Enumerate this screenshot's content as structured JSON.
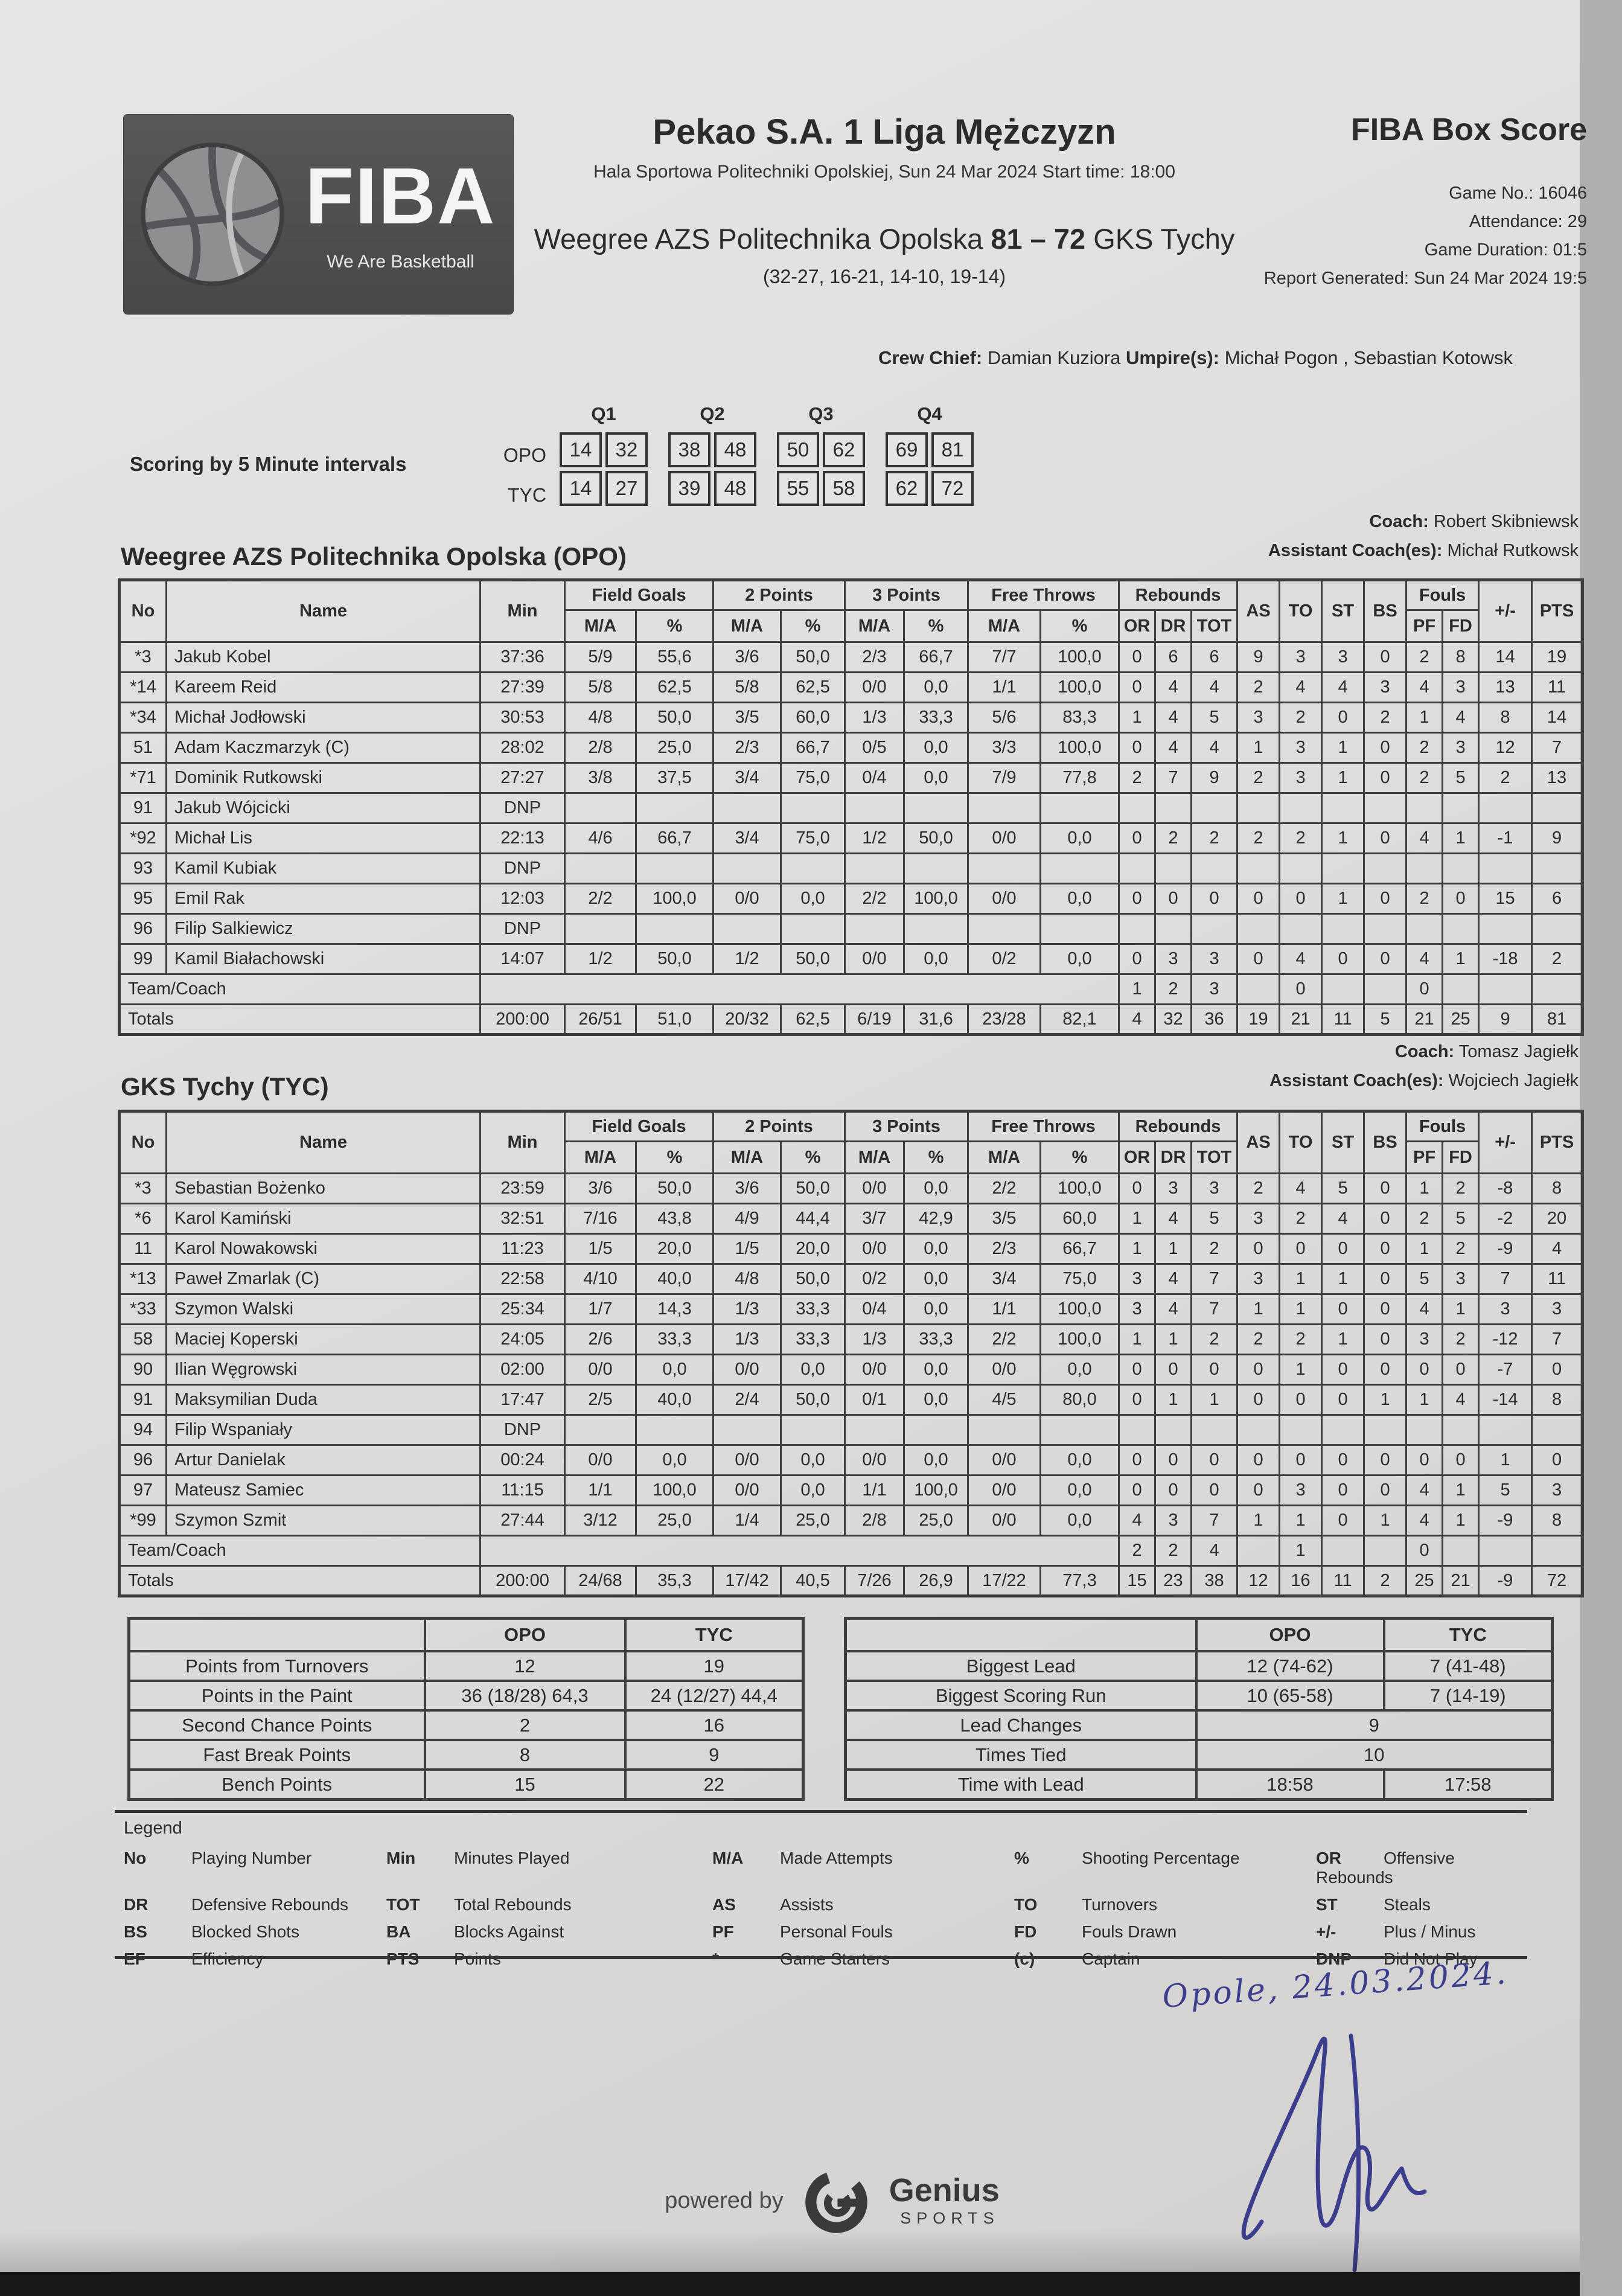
{
  "header": {
    "report_title": "FIBA Box Score",
    "league_title": "Pekao S.A. 1 Liga Mężczyzn",
    "venue_line": "Hala Sportowa Politechniki Opolskiej, Sun 24 Mar 2024 Start time: 18:00",
    "home_team": "Weegree AZS Politechnika Opolska",
    "score": "81 – 72",
    "away_team": "GKS Tychy",
    "quarter_scores": "(32-27, 16-21, 14-10, 19-14)",
    "info": {
      "game_no_label": "Game No.:",
      "game_no": "16046",
      "attendance_label": "Attendance:",
      "attendance": "29",
      "duration_label": "Game Duration:",
      "duration": "01:5",
      "generated_label": "Report Generated:",
      "generated": "Sun 24 Mar 2024 19:5"
    },
    "crew": {
      "chief_label": "Crew Chief:",
      "chief": "Damian Kuziora",
      "umpires_label": "Umpire(s):",
      "umpires": "Michał Pogon , Sebastian Kotowsk"
    },
    "logo": {
      "brand": "FIBA",
      "tagline": "We Are Basketball"
    }
  },
  "intervals": {
    "label": "Scoring by 5 Minute intervals",
    "quarters": [
      "Q1",
      "Q2",
      "Q3",
      "Q4"
    ],
    "rows": [
      {
        "team": "OPO",
        "values": [
          [
            "14",
            "32"
          ],
          [
            "38",
            "48"
          ],
          [
            "50",
            "62"
          ],
          [
            "69",
            "81"
          ]
        ]
      },
      {
        "team": "TYC",
        "values": [
          [
            "14",
            "27"
          ],
          [
            "39",
            "48"
          ],
          [
            "55",
            "58"
          ],
          [
            "62",
            "72"
          ]
        ]
      }
    ]
  },
  "cols": {
    "no": "No",
    "name": "Name",
    "min": "Min",
    "fg": "Field Goals",
    "p2": "2 Points",
    "p3": "3 Points",
    "ft": "Free Throws",
    "reb": "Rebounds",
    "ma": "M/A",
    "pct": "%",
    "or": "OR",
    "dr": "DR",
    "tot": "TOT",
    "as": "AS",
    "to": "TO",
    "st": "ST",
    "bs": "BS",
    "fouls": "Fouls",
    "pf": "PF",
    "fd": "FD",
    "pm": "+/-",
    "pts": "PTS"
  },
  "opo": {
    "title": "Weegree AZS Politechnika Opolska (OPO)",
    "coach_label": "Coach:",
    "coach": "Robert Skibniewsk",
    "assistant_label": "Assistant Coach(es):",
    "assistant": "Michał Rutkowsk",
    "players": [
      [
        "*3",
        "Jakub Kobel",
        "37:36",
        "5/9",
        "55,6",
        "3/6",
        "50,0",
        "2/3",
        "66,7",
        "7/7",
        "100,0",
        "0",
        "6",
        "6",
        "9",
        "3",
        "3",
        "0",
        "2",
        "8",
        "14",
        "19"
      ],
      [
        "*14",
        "Kareem Reid",
        "27:39",
        "5/8",
        "62,5",
        "5/8",
        "62,5",
        "0/0",
        "0,0",
        "1/1",
        "100,0",
        "0",
        "4",
        "4",
        "2",
        "4",
        "4",
        "3",
        "4",
        "3",
        "13",
        "11"
      ],
      [
        "*34",
        "Michał Jodłowski",
        "30:53",
        "4/8",
        "50,0",
        "3/5",
        "60,0",
        "1/3",
        "33,3",
        "5/6",
        "83,3",
        "1",
        "4",
        "5",
        "3",
        "2",
        "0",
        "2",
        "1",
        "4",
        "8",
        "14"
      ],
      [
        "51",
        "Adam Kaczmarzyk (C)",
        "28:02",
        "2/8",
        "25,0",
        "2/3",
        "66,7",
        "0/5",
        "0,0",
        "3/3",
        "100,0",
        "0",
        "4",
        "4",
        "1",
        "3",
        "1",
        "0",
        "2",
        "3",
        "12",
        "7"
      ],
      [
        "*71",
        "Dominik Rutkowski",
        "27:27",
        "3/8",
        "37,5",
        "3/4",
        "75,0",
        "0/4",
        "0,0",
        "7/9",
        "77,8",
        "2",
        "7",
        "9",
        "2",
        "3",
        "1",
        "0",
        "2",
        "5",
        "2",
        "13"
      ],
      [
        "91",
        "Jakub Wójcicki",
        "DNP",
        "",
        "",
        "",
        "",
        "",
        "",
        "",
        "",
        "",
        "",
        "",
        "",
        "",
        "",
        "",
        "",
        "",
        "",
        ""
      ],
      [
        "*92",
        "Michał Lis",
        "22:13",
        "4/6",
        "66,7",
        "3/4",
        "75,0",
        "1/2",
        "50,0",
        "0/0",
        "0,0",
        "0",
        "2",
        "2",
        "2",
        "2",
        "1",
        "0",
        "4",
        "1",
        "-1",
        "9"
      ],
      [
        "93",
        "Kamil Kubiak",
        "DNP",
        "",
        "",
        "",
        "",
        "",
        "",
        "",
        "",
        "",
        "",
        "",
        "",
        "",
        "",
        "",
        "",
        "",
        "",
        ""
      ],
      [
        "95",
        "Emil Rak",
        "12:03",
        "2/2",
        "100,0",
        "0/0",
        "0,0",
        "2/2",
        "100,0",
        "0/0",
        "0,0",
        "0",
        "0",
        "0",
        "0",
        "0",
        "1",
        "0",
        "2",
        "0",
        "15",
        "6"
      ],
      [
        "96",
        "Filip Salkiewicz",
        "DNP",
        "",
        "",
        "",
        "",
        "",
        "",
        "",
        "",
        "",
        "",
        "",
        "",
        "",
        "",
        "",
        "",
        "",
        "",
        ""
      ],
      [
        "99",
        "Kamil Białachowski",
        "14:07",
        "1/2",
        "50,0",
        "1/2",
        "50,0",
        "0/0",
        "0,0",
        "0/2",
        "0,0",
        "0",
        "3",
        "3",
        "0",
        "4",
        "0",
        "0",
        "4",
        "1",
        "-18",
        "2"
      ]
    ],
    "team_row": {
      "label": "Team/Coach",
      "cells": [
        "1",
        "2",
        "3",
        "",
        "0",
        "",
        "",
        "0",
        "",
        "",
        ""
      ]
    },
    "totals": {
      "label": "Totals",
      "cells": [
        "200:00",
        "26/51",
        "51,0",
        "20/32",
        "62,5",
        "6/19",
        "31,6",
        "23/28",
        "82,1",
        "4",
        "32",
        "36",
        "19",
        "21",
        "11",
        "5",
        "21",
        "25",
        "9",
        "81"
      ]
    }
  },
  "tyc": {
    "title": "GKS Tychy (TYC)",
    "coach_label": "Coach:",
    "coach": "Tomasz Jagiełk",
    "assistant_label": "Assistant Coach(es):",
    "assistant": "Wojciech Jagiełk",
    "players": [
      [
        "*3",
        "Sebastian Bożenko",
        "23:59",
        "3/6",
        "50,0",
        "3/6",
        "50,0",
        "0/0",
        "0,0",
        "2/2",
        "100,0",
        "0",
        "3",
        "3",
        "2",
        "4",
        "5",
        "0",
        "1",
        "2",
        "-8",
        "8"
      ],
      [
        "*6",
        "Karol Kamiński",
        "32:51",
        "7/16",
        "43,8",
        "4/9",
        "44,4",
        "3/7",
        "42,9",
        "3/5",
        "60,0",
        "1",
        "4",
        "5",
        "3",
        "2",
        "4",
        "0",
        "2",
        "5",
        "-2",
        "20"
      ],
      [
        "11",
        "Karol Nowakowski",
        "11:23",
        "1/5",
        "20,0",
        "1/5",
        "20,0",
        "0/0",
        "0,0",
        "2/3",
        "66,7",
        "1",
        "1",
        "2",
        "0",
        "0",
        "0",
        "0",
        "1",
        "2",
        "-9",
        "4"
      ],
      [
        "*13",
        "Paweł Zmarlak (C)",
        "22:58",
        "4/10",
        "40,0",
        "4/8",
        "50,0",
        "0/2",
        "0,0",
        "3/4",
        "75,0",
        "3",
        "4",
        "7",
        "3",
        "1",
        "1",
        "0",
        "5",
        "3",
        "7",
        "11"
      ],
      [
        "*33",
        "Szymon Walski",
        "25:34",
        "1/7",
        "14,3",
        "1/3",
        "33,3",
        "0/4",
        "0,0",
        "1/1",
        "100,0",
        "3",
        "4",
        "7",
        "1",
        "1",
        "0",
        "0",
        "4",
        "1",
        "3",
        "3"
      ],
      [
        "58",
        "Maciej Koperski",
        "24:05",
        "2/6",
        "33,3",
        "1/3",
        "33,3",
        "1/3",
        "33,3",
        "2/2",
        "100,0",
        "1",
        "1",
        "2",
        "2",
        "2",
        "1",
        "0",
        "3",
        "2",
        "-12",
        "7"
      ],
      [
        "90",
        "Ilian Węgrowski",
        "02:00",
        "0/0",
        "0,0",
        "0/0",
        "0,0",
        "0/0",
        "0,0",
        "0/0",
        "0,0",
        "0",
        "0",
        "0",
        "0",
        "1",
        "0",
        "0",
        "0",
        "0",
        "-7",
        "0"
      ],
      [
        "91",
        "Maksymilian Duda",
        "17:47",
        "2/5",
        "40,0",
        "2/4",
        "50,0",
        "0/1",
        "0,0",
        "4/5",
        "80,0",
        "0",
        "1",
        "1",
        "0",
        "0",
        "0",
        "1",
        "1",
        "4",
        "-14",
        "8"
      ],
      [
        "94",
        "Filip Wspaniały",
        "DNP",
        "",
        "",
        "",
        "",
        "",
        "",
        "",
        "",
        "",
        "",
        "",
        "",
        "",
        "",
        "",
        "",
        "",
        "",
        ""
      ],
      [
        "96",
        "Artur Danielak",
        "00:24",
        "0/0",
        "0,0",
        "0/0",
        "0,0",
        "0/0",
        "0,0",
        "0/0",
        "0,0",
        "0",
        "0",
        "0",
        "0",
        "0",
        "0",
        "0",
        "0",
        "0",
        "1",
        "0"
      ],
      [
        "97",
        "Mateusz Samiec",
        "11:15",
        "1/1",
        "100,0",
        "0/0",
        "0,0",
        "1/1",
        "100,0",
        "0/0",
        "0,0",
        "0",
        "0",
        "0",
        "0",
        "3",
        "0",
        "0",
        "4",
        "1",
        "5",
        "3"
      ],
      [
        "*99",
        "Szymon Szmit",
        "27:44",
        "3/12",
        "25,0",
        "1/4",
        "25,0",
        "2/8",
        "25,0",
        "0/0",
        "0,0",
        "4",
        "3",
        "7",
        "1",
        "1",
        "0",
        "1",
        "4",
        "1",
        "-9",
        "8"
      ]
    ],
    "team_row": {
      "label": "Team/Coach",
      "cells": [
        "2",
        "2",
        "4",
        "",
        "1",
        "",
        "",
        "0",
        "",
        "",
        ""
      ]
    },
    "totals": {
      "label": "Totals",
      "cells": [
        "200:00",
        "24/68",
        "35,3",
        "17/42",
        "40,5",
        "7/26",
        "26,9",
        "17/22",
        "77,3",
        "15",
        "23",
        "38",
        "12",
        "16",
        "11",
        "2",
        "25",
        "21",
        "-9",
        "72"
      ]
    }
  },
  "summary_left": {
    "col_opo": "OPO",
    "col_tyc": "TYC",
    "rows": [
      {
        "label": "Points from Turnovers",
        "opo": "12",
        "tyc": "19"
      },
      {
        "label": "Points in the Paint",
        "opo": "36 (18/28) 64,3",
        "tyc": "24 (12/27) 44,4"
      },
      {
        "label": "Second Chance Points",
        "opo": "2",
        "tyc": "16"
      },
      {
        "label": "Fast Break Points",
        "opo": "8",
        "tyc": "9"
      },
      {
        "label": "Bench Points",
        "opo": "15",
        "tyc": "22"
      }
    ]
  },
  "summary_right": {
    "col_opo": "OPO",
    "col_tyc": "TYC",
    "rows": [
      {
        "label": "Biggest Lead",
        "opo": "12 (74-62)",
        "tyc": "7 (41-48)"
      },
      {
        "label": "Biggest Scoring Run",
        "opo": "10 (65-58)",
        "tyc": "7 (14-19)"
      },
      {
        "label": "Lead Changes",
        "both": "9"
      },
      {
        "label": "Times Tied",
        "both": "10"
      },
      {
        "label": "Time with Lead",
        "opo": "18:58",
        "tyc": "17:58"
      }
    ]
  },
  "legend": {
    "title": "Legend",
    "entries": [
      [
        "No",
        "Playing Number"
      ],
      [
        "Min",
        "Minutes Played"
      ],
      [
        "M/A",
        "Made Attempts"
      ],
      [
        "%",
        "Shooting Percentage"
      ],
      [
        "OR",
        "Offensive Rebounds"
      ],
      [
        "DR",
        "Defensive Rebounds"
      ],
      [
        "TOT",
        "Total Rebounds"
      ],
      [
        "AS",
        "Assists"
      ],
      [
        "TO",
        "Turnovers"
      ],
      [
        "ST",
        "Steals"
      ],
      [
        "BS",
        "Blocked Shots"
      ],
      [
        "BA",
        "Blocks Against"
      ],
      [
        "PF",
        "Personal Fouls"
      ],
      [
        "FD",
        "Fouls Drawn"
      ],
      [
        "+/-",
        "Plus / Minus"
      ],
      [
        "EF",
        "Efficiency"
      ],
      [
        "PTS",
        "Points"
      ],
      [
        "*",
        "Game Starters"
      ],
      [
        "(c)",
        "Captain"
      ],
      [
        "DNP",
        "Did Not Play"
      ]
    ]
  },
  "handwriting": {
    "text": "Opole, 24.03.2024."
  },
  "footer": {
    "powered_by": "powered by",
    "brand": "Genius",
    "brand_sub": "SPORTS"
  },
  "colors": {
    "ink_blue": "#3b3e8c",
    "paper": "#dfdedc",
    "logo_gray": "#4e4e50"
  }
}
